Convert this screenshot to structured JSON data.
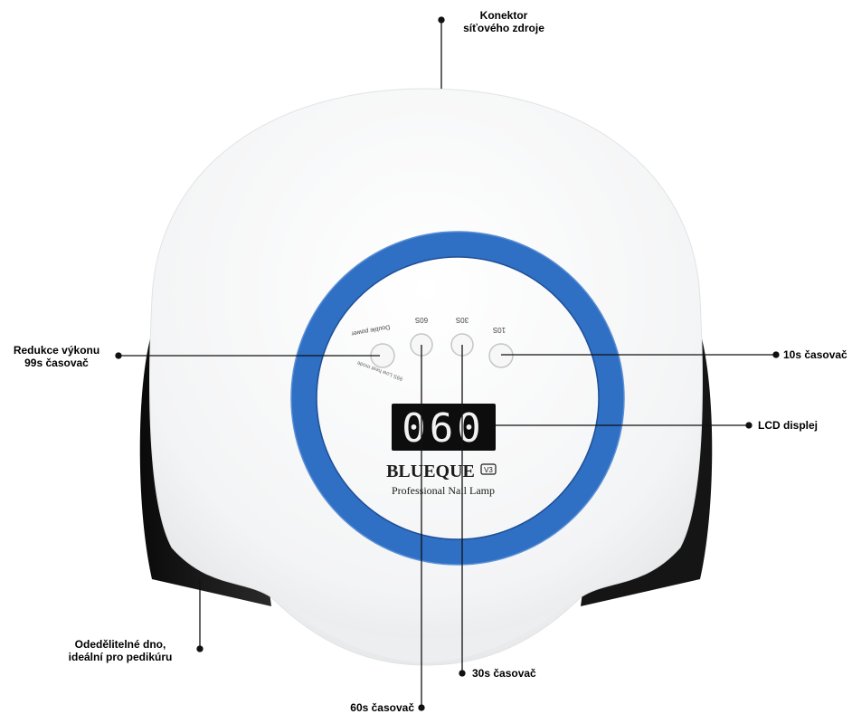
{
  "display": {
    "digits": "060"
  },
  "buttons": {
    "b60": "60S",
    "b30": "30S",
    "b10": "10S",
    "double_power": "Double power",
    "slow_mode": "99S Low heat mode"
  },
  "brand": {
    "name": "BLUEQUE",
    "version_badge": "V3",
    "tagline": "Professional Nail Lamp"
  },
  "callouts": {
    "power_connector_line1": "Konektor",
    "power_connector_line2": "síťového zdroje",
    "power_reduction_line1": "Redukce výkonu",
    "power_reduction_line2": "99s časovač",
    "timer_10s": "10s časovač",
    "lcd_display": "LCD displej",
    "detachable_base_line1": "Odedělitelné dno,",
    "detachable_base_line2": "ideální pro pedikúru",
    "timer_30s": "30s časovač",
    "timer_60s": "60s časovač"
  },
  "colors": {
    "ring_blue": "#2f6fc4",
    "body_white": "#f4f5f6",
    "dark_base": "#1a1a1a",
    "lcd_background": "#0d0d0d",
    "lcd_digits": "#f2f2f2"
  }
}
